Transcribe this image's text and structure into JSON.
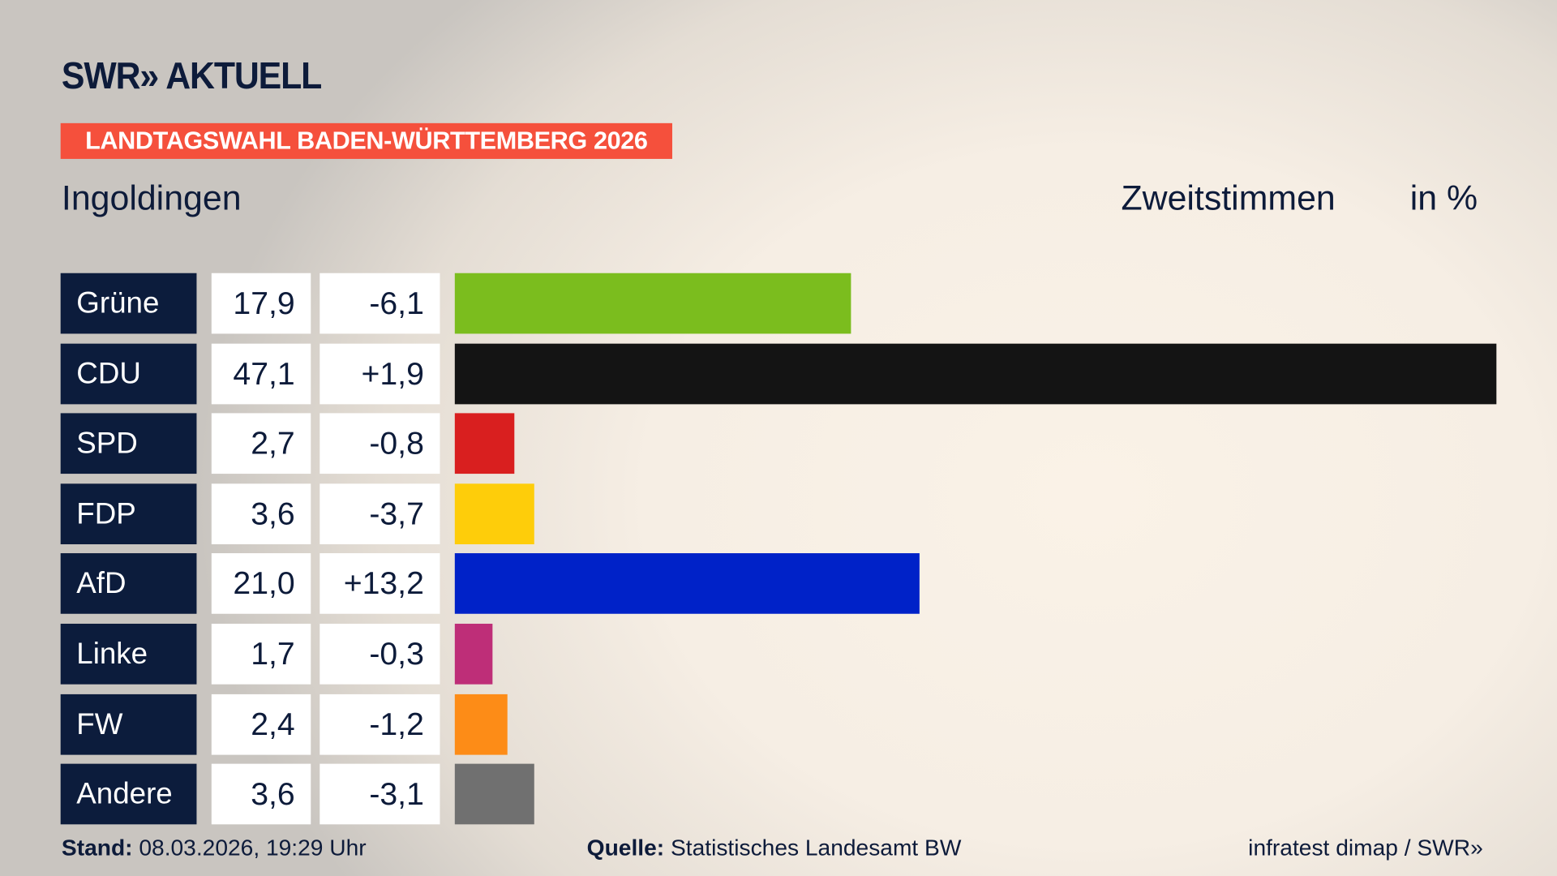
{
  "brand": {
    "logo": "SWR» AKTUELL"
  },
  "banner": "LANDTAGSWAHL BADEN-WÜRTTEMBERG 2026",
  "region": "Ingoldingen",
  "metric": "Zweitstimmen",
  "unit": "in %",
  "chart_data": {
    "type": "bar",
    "orientation": "horizontal",
    "categories": [
      "Grüne",
      "CDU",
      "SPD",
      "FDP",
      "AfD",
      "Linke",
      "FW",
      "Andere"
    ],
    "values": [
      17.9,
      47.1,
      2.7,
      3.6,
      21.0,
      1.7,
      2.4,
      3.6
    ],
    "value_labels": [
      "17,9",
      "47,1",
      "2,7",
      "3,6",
      "21,0",
      "1,7",
      "2,4",
      "3,6"
    ],
    "diff_labels": [
      "-6,1",
      "+1,9",
      "-0,8",
      "-3,7",
      "+13,2",
      "-0,3",
      "-1,2",
      "-3,1"
    ],
    "colors": [
      "#7bbd1e",
      "#141414",
      "#d91f1f",
      "#fecd0a",
      "#0022c8",
      "#be2e78",
      "#fd8c17",
      "#707070"
    ]
  },
  "footer": {
    "stand_label": "Stand:",
    "stand_value": "08.03.2026, 19:29 Uhr",
    "source_label": "Quelle:",
    "source_value": "Statistisches Landesamt BW",
    "credit": "infratest dimap / SWR»"
  }
}
